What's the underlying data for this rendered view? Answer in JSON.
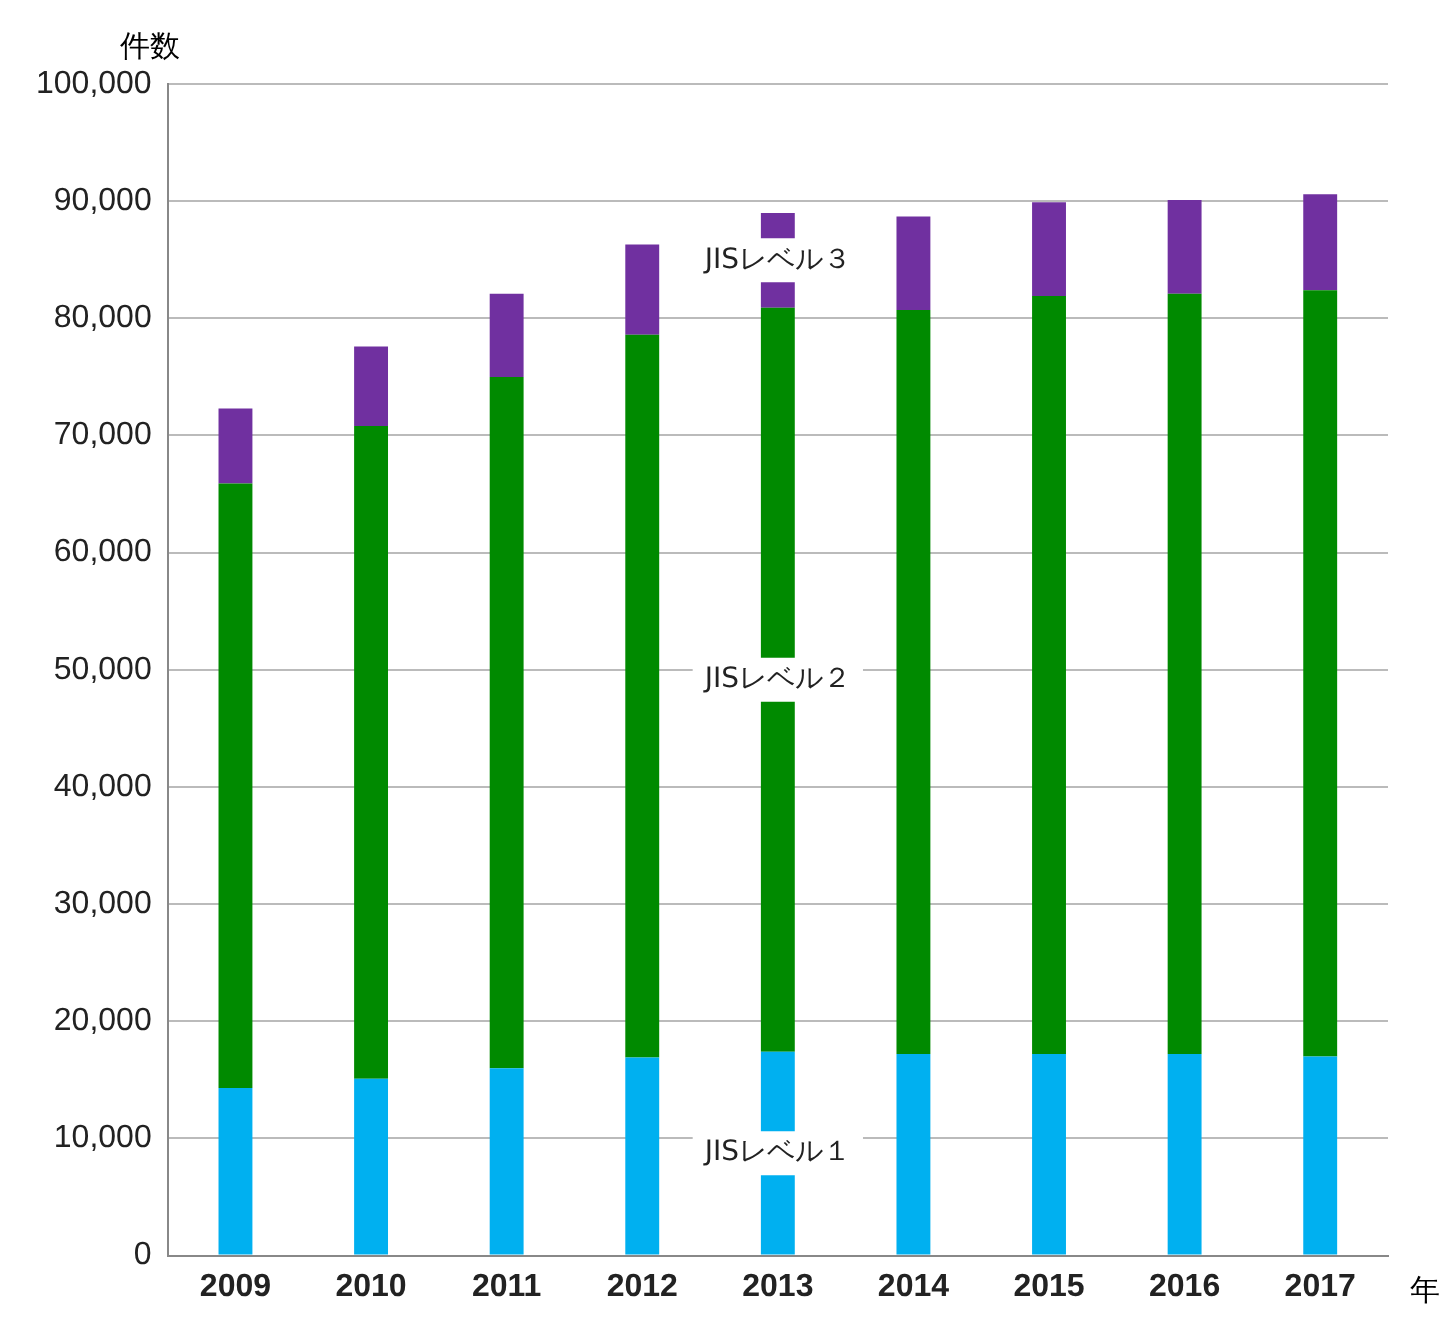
{
  "chart_data": {
    "type": "bar",
    "stacked": true,
    "ylabel": "件数",
    "xlabel": "年",
    "categories": [
      "2009",
      "2010",
      "2011",
      "2012",
      "2013",
      "2014",
      "2015",
      "2016",
      "2017"
    ],
    "series": [
      {
        "name": "JISレベル１",
        "color": "#00b0f0",
        "values": [
          14300,
          15100,
          16000,
          16900,
          17400,
          17200,
          17200,
          17200,
          17000
        ]
      },
      {
        "name": "JISレベル２",
        "color": "#008a00",
        "values": [
          51600,
          55700,
          59000,
          61700,
          63500,
          63500,
          64700,
          64900,
          65400
        ]
      },
      {
        "name": "JISレベル３",
        "color": "#7030a0",
        "values": [
          6400,
          6800,
          7100,
          7700,
          8100,
          8000,
          8000,
          8000,
          8200
        ]
      }
    ],
    "ylim": [
      0,
      100000
    ],
    "yticks": [
      0,
      {
        "value": 10000,
        "label": "10,000"
      },
      {
        "value": 20000,
        "label": "20,000"
      },
      {
        "value": 30000,
        "label": "30,000"
      },
      {
        "value": 40000,
        "label": "40,000"
      },
      {
        "value": 50000,
        "label": "50,000"
      },
      {
        "value": 60000,
        "label": "60,000"
      },
      {
        "value": 70000,
        "label": "70,000"
      },
      {
        "value": 80000,
        "label": "80,000"
      },
      {
        "value": 90000,
        "label": "90,000"
      },
      {
        "value": 100000,
        "label": "100,000"
      }
    ],
    "grid": "y",
    "legend": false
  }
}
